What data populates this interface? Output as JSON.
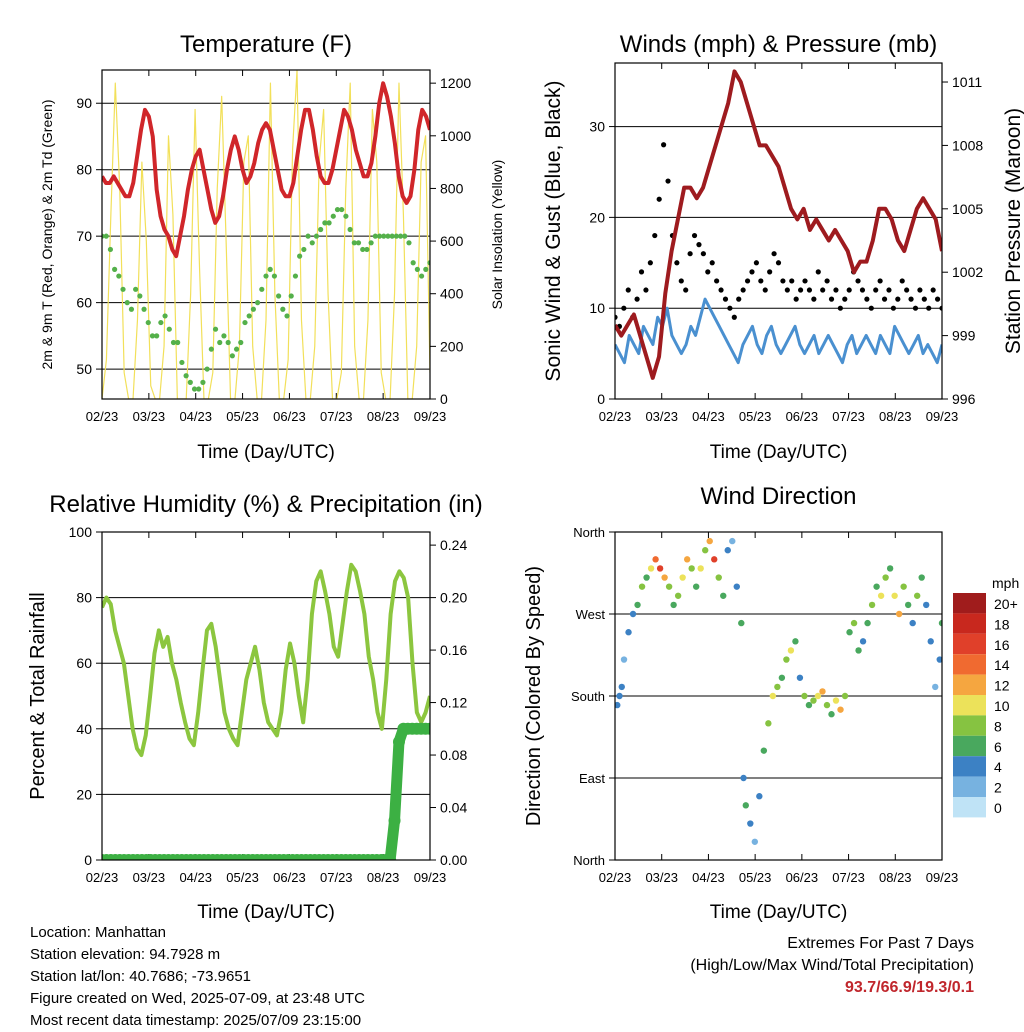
{
  "chart_data": [
    {
      "type": "line",
      "title": "Temperature (F)",
      "xlabel": "Time (Day/UTC)",
      "ylabel": "2m & 9m T (Red, Orange) & 2m Td (Green)",
      "ylabel_right": "Solar Insolation (Yellow)",
      "x_ticks": [
        "02/23",
        "03/23",
        "04/23",
        "05/23",
        "06/23",
        "07/23",
        "08/23",
        "09/23"
      ],
      "y_ticks": [
        "50",
        "60",
        "70",
        "80",
        "90"
      ],
      "y_right_ticks": [
        "0",
        "200",
        "400",
        "600",
        "800",
        "1000",
        "1200"
      ],
      "ylim": [
        45.5,
        95
      ],
      "ylim_right": [
        0,
        1250
      ],
      "grid": "y",
      "series": [
        {
          "color": "#d0262a",
          "style": "line",
          "values": [
            79,
            78,
            78,
            79,
            78,
            77,
            76,
            76,
            78,
            82,
            86,
            89,
            88,
            85,
            77,
            73,
            71,
            70,
            68,
            67,
            70,
            73,
            77,
            80,
            82,
            83,
            80,
            77,
            74,
            72,
            73,
            76,
            80,
            83,
            85,
            83,
            80,
            78,
            79,
            81,
            84,
            86,
            87,
            86,
            83,
            80,
            77,
            76,
            76,
            78,
            82,
            86,
            89,
            89,
            86,
            82,
            79,
            78,
            78,
            80,
            83,
            86,
            89,
            88,
            86,
            83,
            81,
            79,
            79,
            81,
            85,
            90,
            93,
            91,
            88,
            84,
            79,
            76,
            75,
            76,
            80,
            86,
            89,
            88,
            86
          ]
        },
        {
          "color": "#54b04a",
          "style": "points",
          "values": [
            70,
            70,
            68,
            65,
            64,
            62,
            60,
            59,
            62,
            61,
            59,
            57,
            55,
            55,
            57,
            58,
            56,
            54,
            54,
            51,
            49,
            48,
            47,
            47,
            48,
            50,
            53,
            56,
            54,
            55,
            54,
            52,
            53,
            54,
            57,
            58,
            59,
            60,
            62,
            64,
            65,
            64,
            61,
            59,
            58,
            61,
            64,
            67,
            68,
            70,
            69,
            70,
            71,
            72,
            72,
            73,
            74,
            74,
            73,
            71,
            69,
            69,
            68,
            68,
            69,
            70,
            70,
            70,
            70,
            70,
            70,
            70,
            70,
            69,
            66,
            65,
            64,
            65,
            66
          ]
        },
        {
          "color": "#f2e05a",
          "style": "line-right",
          "values": [
            0,
            150,
            700,
            1200,
            800,
            100,
            0,
            0,
            300,
            900,
            600,
            50,
            0,
            0,
            200,
            1000,
            700,
            0,
            0,
            0,
            400,
            1100,
            500,
            0,
            0,
            100,
            800,
            1150,
            600,
            0,
            0,
            200,
            900,
            1000,
            200,
            0,
            0,
            300,
            1200,
            400,
            0,
            0,
            150,
            950,
            1250,
            300,
            0,
            0,
            200,
            900,
            1100,
            400,
            0,
            0,
            100,
            800,
            1200,
            200,
            0,
            0,
            300,
            1100,
            900,
            100,
            0,
            0,
            400,
            1200,
            700,
            0,
            0,
            200,
            900,
            1000,
            100
          ]
        }
      ]
    },
    {
      "type": "line",
      "title": "Winds (mph) & Pressure (mb)",
      "xlabel": "Time (Day/UTC)",
      "ylabel": "Sonic Wind & Gust (Blue, Black)",
      "ylabel_right": "Station Pressure (Maroon)",
      "x_ticks": [
        "02/23",
        "03/23",
        "04/23",
        "05/23",
        "06/23",
        "07/23",
        "08/23",
        "09/23"
      ],
      "y_ticks": [
        "0",
        "10",
        "20",
        "30"
      ],
      "y_right_ticks": [
        "996",
        "999",
        "1002",
        "1005",
        "1008",
        "1011"
      ],
      "ylim": [
        0,
        37
      ],
      "ylim_right": [
        996,
        1011.9
      ],
      "grid": "y",
      "series": [
        {
          "color": "#4a90d0",
          "style": "area-line",
          "values": [
            6,
            5,
            4,
            7,
            6,
            5,
            8,
            7,
            6,
            9,
            8,
            10,
            7,
            6,
            5,
            6,
            8,
            7,
            9,
            11,
            10,
            9,
            8,
            7,
            6,
            5,
            4,
            6,
            7,
            8,
            6,
            5,
            7,
            8,
            6,
            5,
            6,
            7,
            8,
            6,
            5,
            6,
            7,
            5,
            6,
            7,
            6,
            5,
            4,
            6,
            7,
            5,
            6,
            7,
            6,
            5,
            7,
            6,
            5,
            8,
            7,
            6,
            5,
            6,
            7,
            5,
            6,
            5,
            4,
            6
          ]
        },
        {
          "color": "#000000",
          "style": "points",
          "values": [
            9,
            8,
            10,
            12,
            9,
            11,
            14,
            12,
            15,
            18,
            22,
            28,
            24,
            18,
            15,
            13,
            12,
            16,
            18,
            17,
            16,
            14,
            15,
            13,
            12,
            11,
            10,
            9,
            11,
            12,
            13,
            14,
            15,
            13,
            12,
            14,
            16,
            15,
            13,
            12,
            13,
            11,
            12,
            13,
            12,
            11,
            14,
            12,
            13,
            11,
            12,
            10,
            11,
            12,
            14,
            13,
            12,
            11,
            10,
            12,
            13,
            11,
            12,
            10,
            11,
            13,
            12,
            11,
            10,
            12,
            11,
            10,
            12,
            11,
            10
          ]
        },
        {
          "color": "#9e1b1f",
          "style": "line-right",
          "values": [
            999.5,
            999,
            999.5,
            1000,
            999,
            998,
            997,
            998,
            1001,
            1003,
            1004.5,
            1006,
            1006,
            1005.5,
            1006,
            1007,
            1008,
            1009,
            1010,
            1011.5,
            1011,
            1010,
            1009,
            1008,
            1008,
            1007.5,
            1007,
            1006,
            1005,
            1004.5,
            1005,
            1004,
            1004.5,
            1004,
            1003.5,
            1004,
            1003.5,
            1003,
            1002,
            1002.5,
            1002.5,
            1003.5,
            1005,
            1005,
            1004.5,
            1003.5,
            1003,
            1004,
            1005,
            1005.5,
            1005,
            1004.5,
            1003
          ]
        }
      ]
    },
    {
      "type": "line",
      "title": "Relative Humidity (%) & Precipitation (in)",
      "xlabel": "Time (Day/UTC)",
      "ylabel": "Percent & Total Rainfall",
      "x_ticks": [
        "02/23",
        "03/23",
        "04/23",
        "05/23",
        "06/23",
        "07/23",
        "08/23",
        "09/23"
      ],
      "y_ticks": [
        "0",
        "20",
        "40",
        "60",
        "80",
        "100"
      ],
      "y_right_ticks": [
        "0.00",
        "0.04",
        "0.08",
        "0.12",
        "0.16",
        "0.20",
        "0.24"
      ],
      "ylim": [
        0,
        100
      ],
      "ylim_right": [
        0,
        0.25
      ],
      "grid": "y",
      "series": [
        {
          "color": "#8cc63f",
          "style": "line",
          "values": [
            77,
            80,
            78,
            70,
            65,
            60,
            50,
            40,
            34,
            32,
            38,
            50,
            63,
            70,
            65,
            68,
            60,
            55,
            48,
            42,
            37,
            35,
            45,
            58,
            70,
            72,
            65,
            55,
            45,
            40,
            37,
            35,
            45,
            55,
            60,
            65,
            58,
            48,
            42,
            40,
            38,
            45,
            58,
            66,
            60,
            50,
            42,
            55,
            75,
            85,
            88,
            82,
            75,
            65,
            62,
            72,
            82,
            90,
            88,
            82,
            75,
            62,
            55,
            45,
            40,
            55,
            75,
            85,
            88,
            86,
            80,
            60,
            45,
            42,
            45,
            50
          ]
        },
        {
          "color": "#3cb043",
          "style": "points-right",
          "values": [
            0,
            0,
            0,
            0,
            0,
            0,
            0,
            0,
            0,
            0,
            0,
            0,
            0,
            0,
            0,
            0,
            0,
            0,
            0,
            0,
            0,
            0,
            0,
            0,
            0,
            0,
            0,
            0,
            0,
            0,
            0,
            0,
            0,
            0,
            0,
            0,
            0,
            0,
            0,
            0,
            0,
            0,
            0,
            0,
            0,
            0,
            0,
            0,
            0,
            0,
            0,
            0,
            0,
            0,
            0,
            0,
            0,
            0,
            0,
            0,
            0,
            0,
            0,
            0,
            0,
            0,
            0.03,
            0.09,
            0.1,
            0.1,
            0.1,
            0.1,
            0.1,
            0.1,
            0.1
          ]
        }
      ]
    },
    {
      "type": "scatter",
      "title": "Wind Direction",
      "xlabel": "Time (Day/UTC)",
      "ylabel": "Direction (Colored By Speed)",
      "x_ticks": [
        "02/23",
        "03/23",
        "04/23",
        "05/23",
        "06/23",
        "07/23",
        "08/23",
        "09/23"
      ],
      "y_ticks": [
        "North",
        "East",
        "South",
        "West",
        "North"
      ],
      "ylim": [
        0,
        360
      ],
      "grid": "y",
      "colorbar": {
        "unit": "mph",
        "labels": [
          "20+",
          "18",
          "16",
          "14",
          "12",
          "10",
          "8",
          "6",
          "4",
          "2",
          "0"
        ],
        "colors": [
          "#a01c1c",
          "#c8281e",
          "#e0402a",
          "#f06a30",
          "#f5a640",
          "#ece25a",
          "#86c341",
          "#49a85e",
          "#3c81c4",
          "#77b2e0",
          "#bfe3f6"
        ]
      },
      "points": [
        [
          0.5,
          170,
          4
        ],
        [
          1,
          180,
          3
        ],
        [
          1.5,
          190,
          4
        ],
        [
          2,
          220,
          2
        ],
        [
          3,
          250,
          4
        ],
        [
          4,
          270,
          3
        ],
        [
          5,
          280,
          6
        ],
        [
          6,
          300,
          8
        ],
        [
          7,
          310,
          6
        ],
        [
          8,
          320,
          10
        ],
        [
          9,
          330,
          14
        ],
        [
          10,
          320,
          16
        ],
        [
          11,
          310,
          12
        ],
        [
          12,
          300,
          8
        ],
        [
          13,
          280,
          6
        ],
        [
          14,
          290,
          8
        ],
        [
          15,
          310,
          10
        ],
        [
          16,
          330,
          12
        ],
        [
          17,
          320,
          8
        ],
        [
          18,
          300,
          6
        ],
        [
          19,
          320,
          10
        ],
        [
          20,
          340,
          8
        ],
        [
          21,
          350,
          12
        ],
        [
          22,
          330,
          16
        ],
        [
          23,
          310,
          8
        ],
        [
          24,
          290,
          6
        ],
        [
          25,
          340,
          4
        ],
        [
          26,
          350,
          2
        ],
        [
          27,
          300,
          4
        ],
        [
          28,
          260,
          6
        ],
        [
          28.5,
          90,
          4
        ],
        [
          29,
          60,
          6
        ],
        [
          30,
          40,
          4
        ],
        [
          31,
          20,
          2
        ],
        [
          32,
          70,
          4
        ],
        [
          33,
          120,
          6
        ],
        [
          34,
          150,
          8
        ],
        [
          35,
          180,
          10
        ],
        [
          36,
          190,
          8
        ],
        [
          37,
          200,
          6
        ],
        [
          38,
          220,
          8
        ],
        [
          39,
          230,
          10
        ],
        [
          40,
          240,
          6
        ],
        [
          41,
          200,
          4
        ],
        [
          42,
          180,
          8
        ],
        [
          43,
          170,
          6
        ],
        [
          44,
          175,
          8
        ],
        [
          45,
          180,
          10
        ],
        [
          46,
          185,
          12
        ],
        [
          47,
          170,
          8
        ],
        [
          48,
          160,
          6
        ],
        [
          49,
          175,
          10
        ],
        [
          50,
          165,
          12
        ],
        [
          51,
          180,
          8
        ],
        [
          52,
          250,
          6
        ],
        [
          53,
          260,
          8
        ],
        [
          54,
          230,
          6
        ],
        [
          55,
          240,
          4
        ],
        [
          56,
          260,
          6
        ],
        [
          57,
          280,
          8
        ],
        [
          58,
          300,
          6
        ],
        [
          59,
          290,
          10
        ],
        [
          60,
          310,
          8
        ],
        [
          61,
          320,
          6
        ],
        [
          62,
          290,
          10
        ],
        [
          63,
          270,
          12
        ],
        [
          64,
          300,
          8
        ],
        [
          65,
          280,
          6
        ],
        [
          66,
          260,
          4
        ],
        [
          67,
          290,
          8
        ],
        [
          68,
          310,
          6
        ],
        [
          69,
          280,
          4
        ],
        [
          70,
          240,
          4
        ],
        [
          71,
          190,
          2
        ],
        [
          72,
          220,
          4
        ],
        [
          72.5,
          260,
          6
        ]
      ]
    }
  ],
  "footer": {
    "location": "Location: Manhattan",
    "elevation": "Station elevation: 94.7928 m",
    "latlon": "Station lat/lon: 40.7686; -73.9651",
    "created": "Figure created on Wed, 2025-07-09, at 23:48 UTC",
    "recent": "Most recent data timestamp: 2025/07/09 23:15:00",
    "extremes_title": "Extremes For Past 7 Days",
    "extremes_sub": "(High/Low/Max Wind/Total Precipitation)",
    "extremes_values": "93.7/66.9/19.3/0.1"
  }
}
